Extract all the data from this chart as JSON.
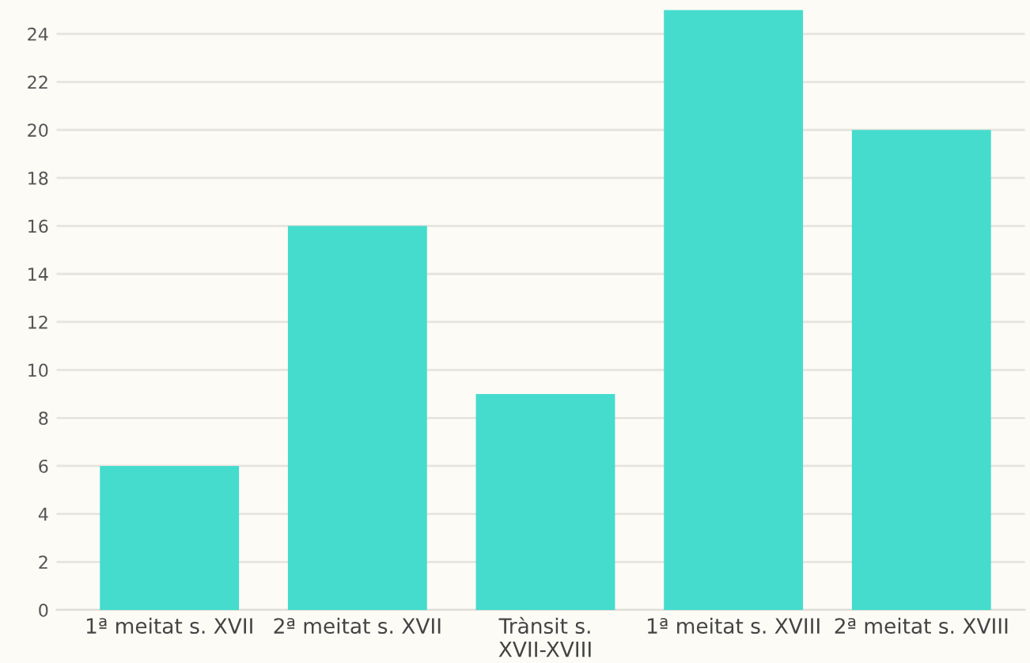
{
  "chart_data": {
    "type": "bar",
    "categories": [
      "1ª meitat s. XVII",
      "2ª meitat s. XVII",
      "Trànsit s.\nXVII-XVIII",
      "1ª meitat s. XVIII",
      "2ª meitat s. XVIII"
    ],
    "values": [
      6,
      16,
      9,
      25,
      20
    ],
    "color": "#45dccd",
    "ylim": [
      0,
      25
    ],
    "yticks": [
      0,
      2,
      4,
      6,
      8,
      10,
      12,
      14,
      16,
      18,
      20,
      22,
      24
    ],
    "grid": "y"
  }
}
